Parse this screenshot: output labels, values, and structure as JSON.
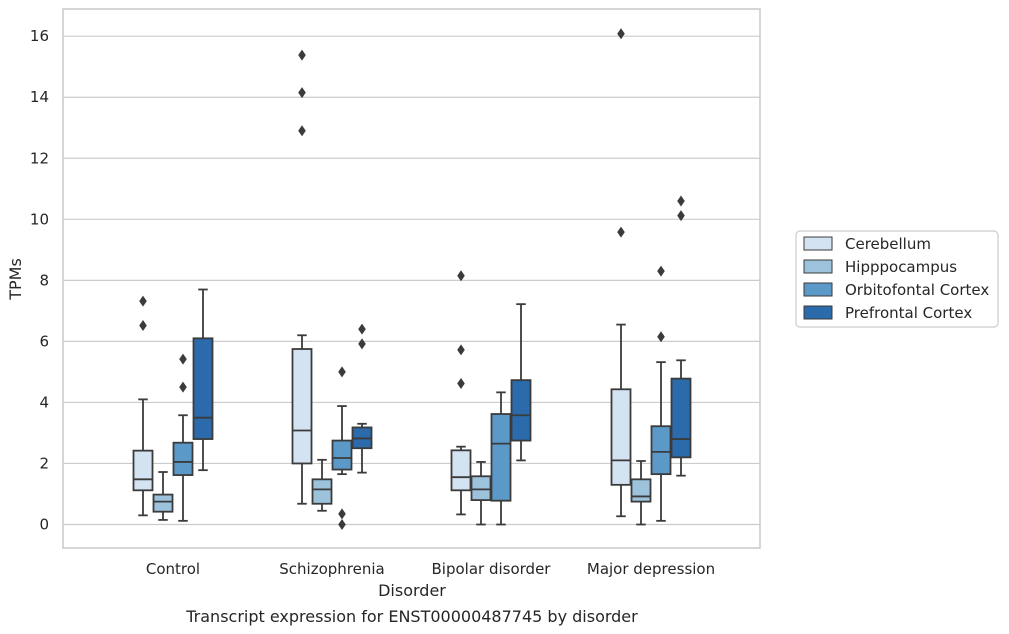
{
  "chart_data": {
    "type": "box",
    "title": "",
    "caption": "Transcript expression for ENST00000487745 by disorder",
    "xlabel": "Disorder",
    "ylabel": "TPMs",
    "ylim": [
      -0.75,
      16.85
    ],
    "yticks": [
      0,
      2,
      4,
      6,
      8,
      10,
      12,
      14,
      16
    ],
    "grid": "horizontal",
    "legend_position": "right",
    "categories": [
      "Control",
      "Schizophrenia",
      "Bipolar disorder",
      "Major depression"
    ],
    "series": [
      {
        "name": "Cerebellum",
        "color": "#d4e3f2",
        "boxes": [
          {
            "whislo": 0.3,
            "q1": 1.12,
            "med": 1.48,
            "q3": 2.42,
            "whishi": 4.1,
            "fliers": [
              6.52,
              7.32
            ]
          },
          {
            "whislo": 0.68,
            "q1": 2.0,
            "med": 3.08,
            "q3": 5.75,
            "whishi": 6.2,
            "fliers": [
              12.9,
              14.15,
              15.38
            ]
          },
          {
            "whislo": 0.33,
            "q1": 1.12,
            "med": 1.55,
            "q3": 2.43,
            "whishi": 2.55,
            "fliers": [
              4.62,
              5.72,
              8.15
            ]
          },
          {
            "whislo": 0.27,
            "q1": 1.3,
            "med": 2.1,
            "q3": 4.43,
            "whishi": 6.55,
            "fliers": [
              9.58,
              16.08
            ]
          }
        ]
      },
      {
        "name": "Hipppocampus",
        "color": "#9dc3dc",
        "boxes": [
          {
            "whislo": 0.15,
            "q1": 0.42,
            "med": 0.75,
            "q3": 0.98,
            "whishi": 1.72,
            "fliers": []
          },
          {
            "whislo": 0.45,
            "q1": 0.68,
            "med": 1.15,
            "q3": 1.48,
            "whishi": 2.12,
            "fliers": []
          },
          {
            "whislo": 0.0,
            "q1": 0.8,
            "med": 1.15,
            "q3": 1.58,
            "whishi": 2.05,
            "fliers": []
          },
          {
            "whislo": 0.0,
            "q1": 0.75,
            "med": 0.92,
            "q3": 1.48,
            "whishi": 2.08,
            "fliers": []
          }
        ]
      },
      {
        "name": "Orbitofontal Cortex",
        "color": "#5b9ac8",
        "boxes": [
          {
            "whislo": 0.12,
            "q1": 1.62,
            "med": 2.05,
            "q3": 2.68,
            "whishi": 3.58,
            "fliers": [
              4.5,
              5.42
            ]
          },
          {
            "whislo": 1.65,
            "q1": 1.8,
            "med": 2.18,
            "q3": 2.75,
            "whishi": 3.88,
            "fliers": [
              0.0,
              0.35,
              5.0
            ]
          },
          {
            "whislo": 0.0,
            "q1": 0.78,
            "med": 2.65,
            "q3": 3.62,
            "whishi": 4.33,
            "fliers": []
          },
          {
            "whislo": 0.12,
            "q1": 1.65,
            "med": 2.38,
            "q3": 3.22,
            "whishi": 5.32,
            "fliers": [
              6.15,
              8.3
            ]
          }
        ]
      },
      {
        "name": "Prefrontal Cortex",
        "color": "#2b6aab",
        "boxes": [
          {
            "whislo": 1.78,
            "q1": 2.8,
            "med": 3.5,
            "q3": 6.1,
            "whishi": 7.7,
            "fliers": []
          },
          {
            "whislo": 1.7,
            "q1": 2.5,
            "med": 2.82,
            "q3": 3.18,
            "whishi": 3.3,
            "fliers": [
              5.92,
              6.4
            ]
          },
          {
            "whislo": 2.1,
            "q1": 2.75,
            "med": 3.58,
            "q3": 4.73,
            "whishi": 7.22,
            "fliers": []
          },
          {
            "whislo": 1.6,
            "q1": 2.2,
            "med": 2.8,
            "q3": 4.78,
            "whishi": 5.38,
            "fliers": [
              10.12,
              10.6
            ]
          }
        ]
      }
    ]
  }
}
